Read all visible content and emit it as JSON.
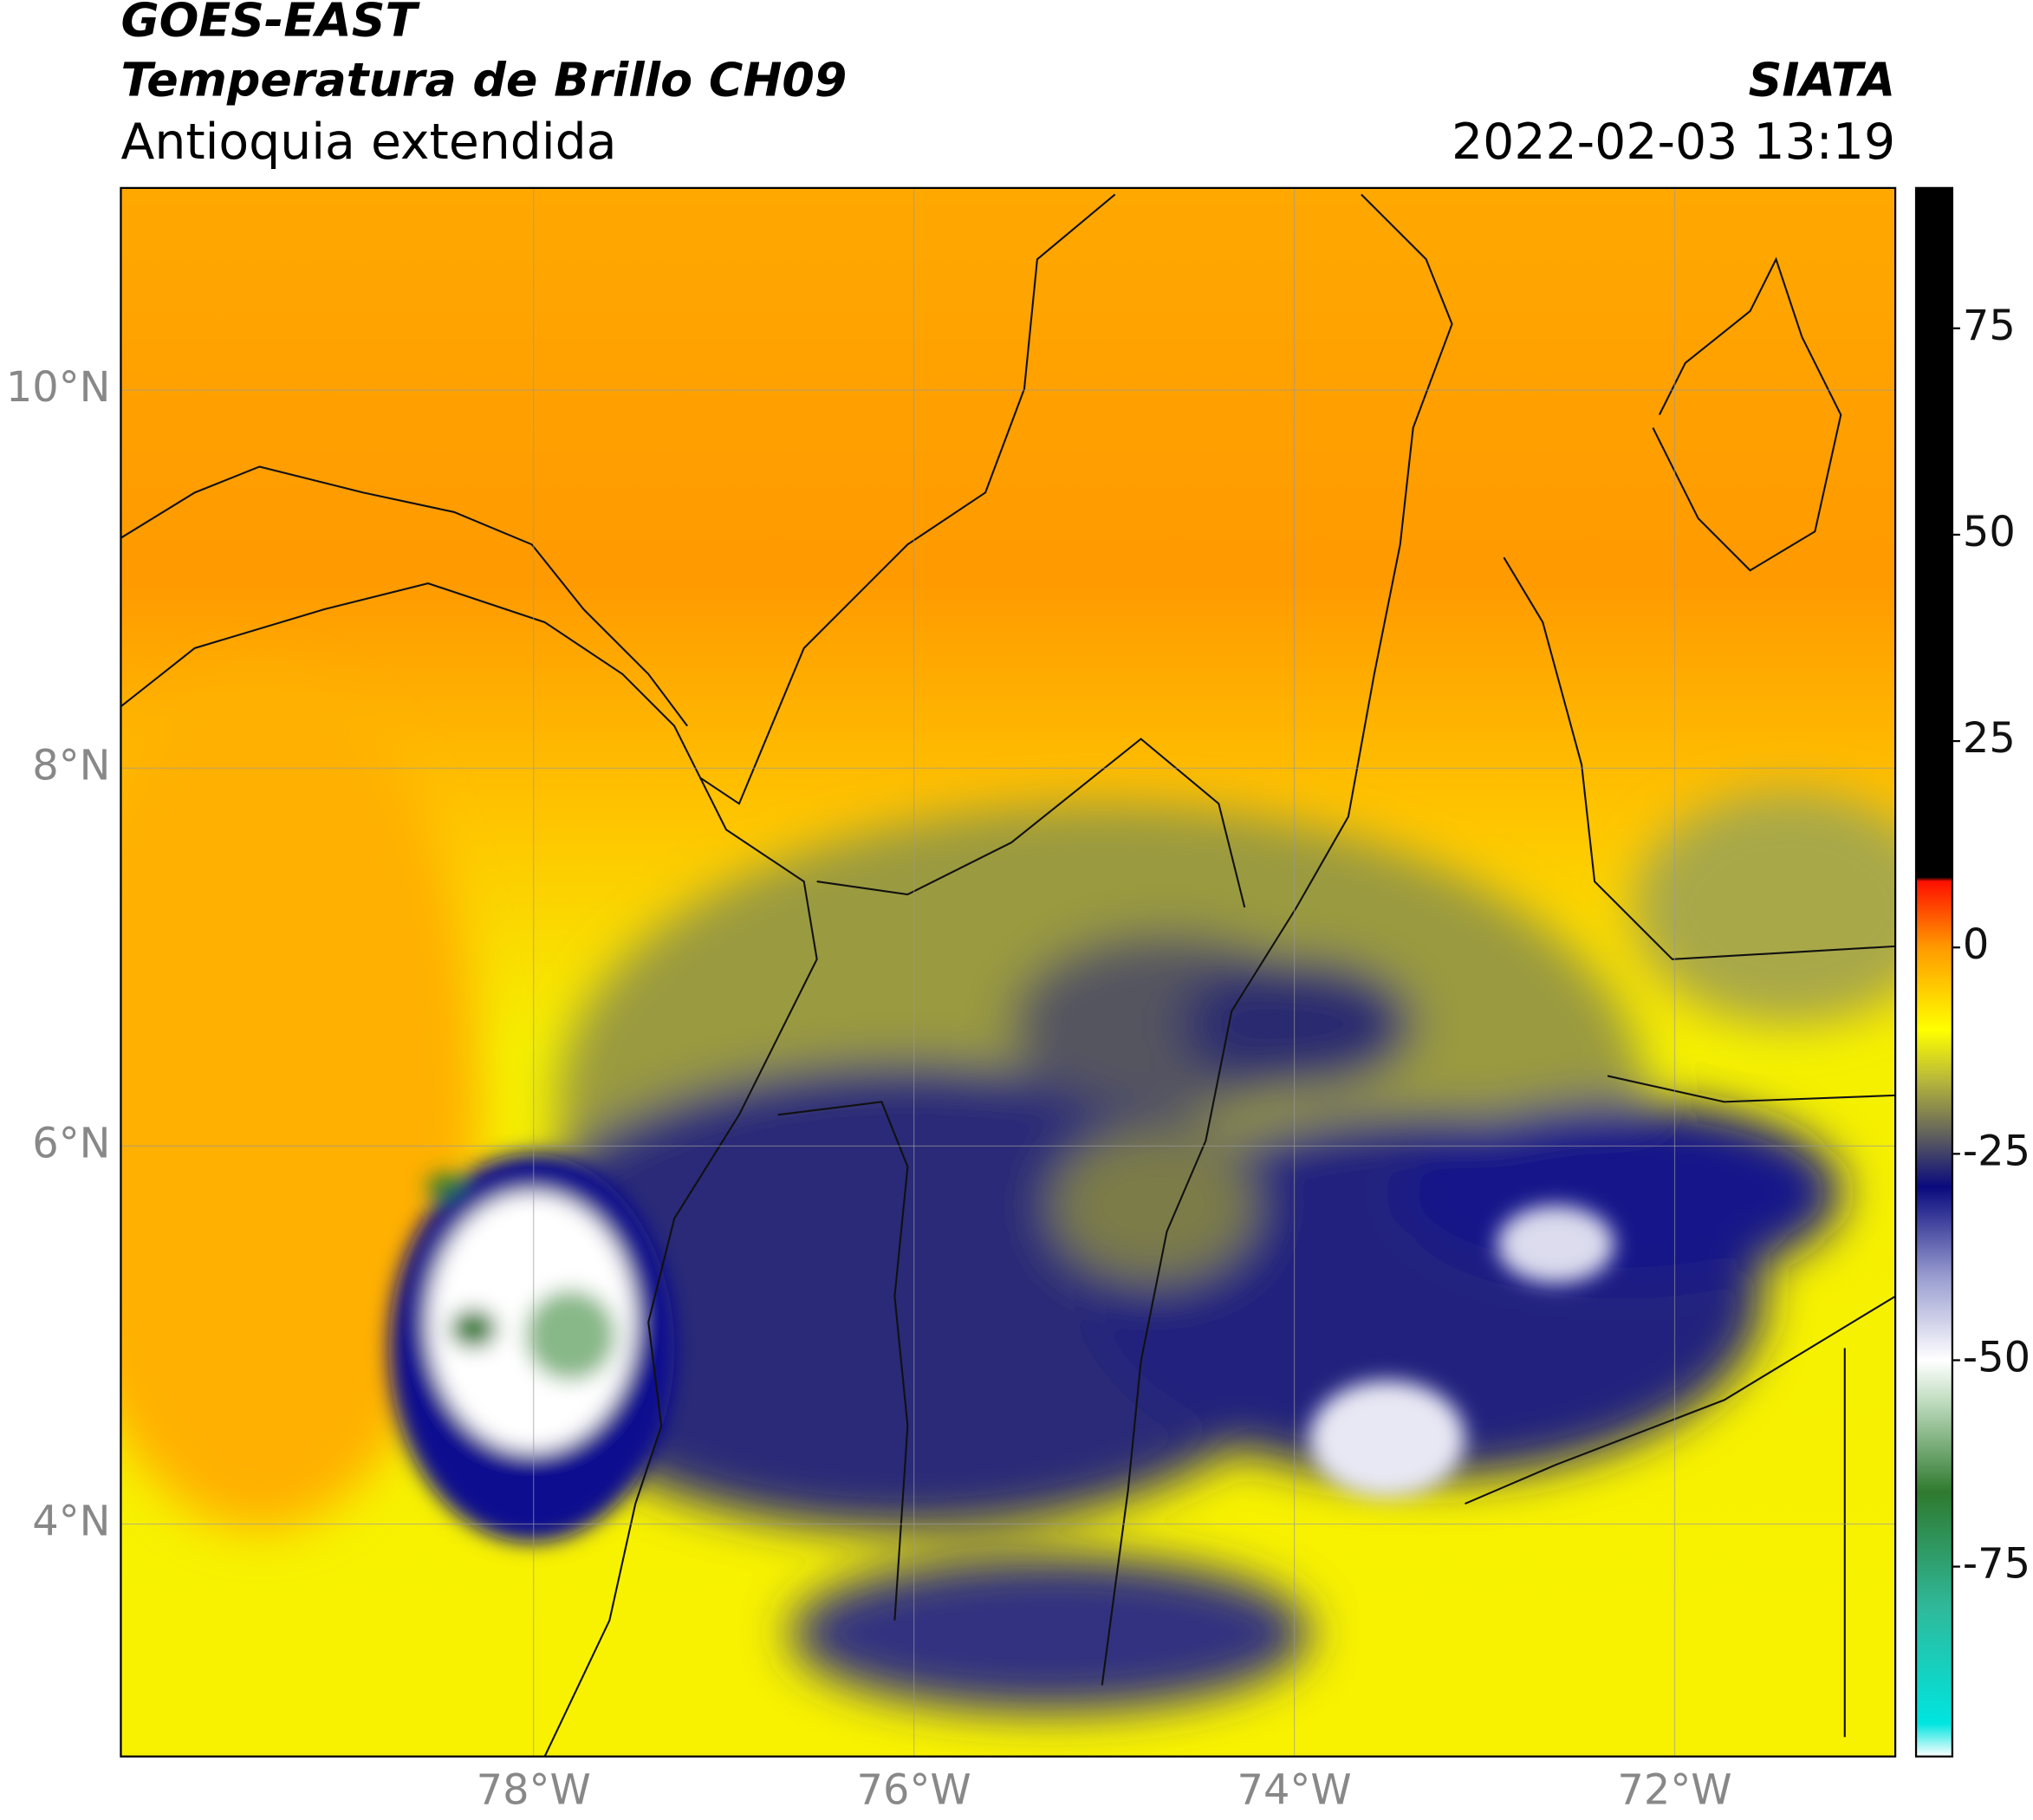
{
  "map": {
    "title": "GOES-EAST",
    "subtitle": "Temperatura de Brillo CH09",
    "region": "Antioquia extendida",
    "source": "SIATA",
    "datetime": "2022-02-03 13:19",
    "lonlim": [
      -80.17,
      -70.84
    ],
    "latlim": [
      2.77,
      11.07
    ],
    "lon_ticks": [
      {
        "value": -78,
        "label": "78°W"
      },
      {
        "value": -76,
        "label": "76°W"
      },
      {
        "value": -74,
        "label": "74°W"
      },
      {
        "value": -72,
        "label": "72°W"
      }
    ],
    "lat_ticks": [
      {
        "value": 4,
        "label": "4°N"
      },
      {
        "value": 6,
        "label": "6°N"
      },
      {
        "value": 8,
        "label": "8°N"
      },
      {
        "value": 10,
        "label": "10°N"
      }
    ],
    "grid": true,
    "colorbar": {
      "lim": [
        -98,
        92
      ],
      "ticks": [
        75,
        50,
        25,
        0,
        -25,
        -50,
        -75
      ],
      "stops": [
        {
          "value": -98,
          "color": "#ffffff"
        },
        {
          "value": -94,
          "color": "#00e5e0"
        },
        {
          "value": -80,
          "color": "#2fb99a"
        },
        {
          "value": -66,
          "color": "#2f7a2f"
        },
        {
          "value": -55,
          "color": "#bfdcbf"
        },
        {
          "value": -50,
          "color": "#ffffff"
        },
        {
          "value": -40,
          "color": "#9a9ed0"
        },
        {
          "value": -29,
          "color": "#0a0a7e"
        },
        {
          "value": -22,
          "color": "#6a6a5a"
        },
        {
          "value": -16,
          "color": "#b8b83a"
        },
        {
          "value": -10,
          "color": "#ffff00"
        },
        {
          "value": 0,
          "color": "#ff9a00"
        },
        {
          "value": 8,
          "color": "#ff1000"
        },
        {
          "value": 8.5,
          "color": "#000000"
        },
        {
          "value": 92,
          "color": "#000000"
        }
      ]
    }
  }
}
